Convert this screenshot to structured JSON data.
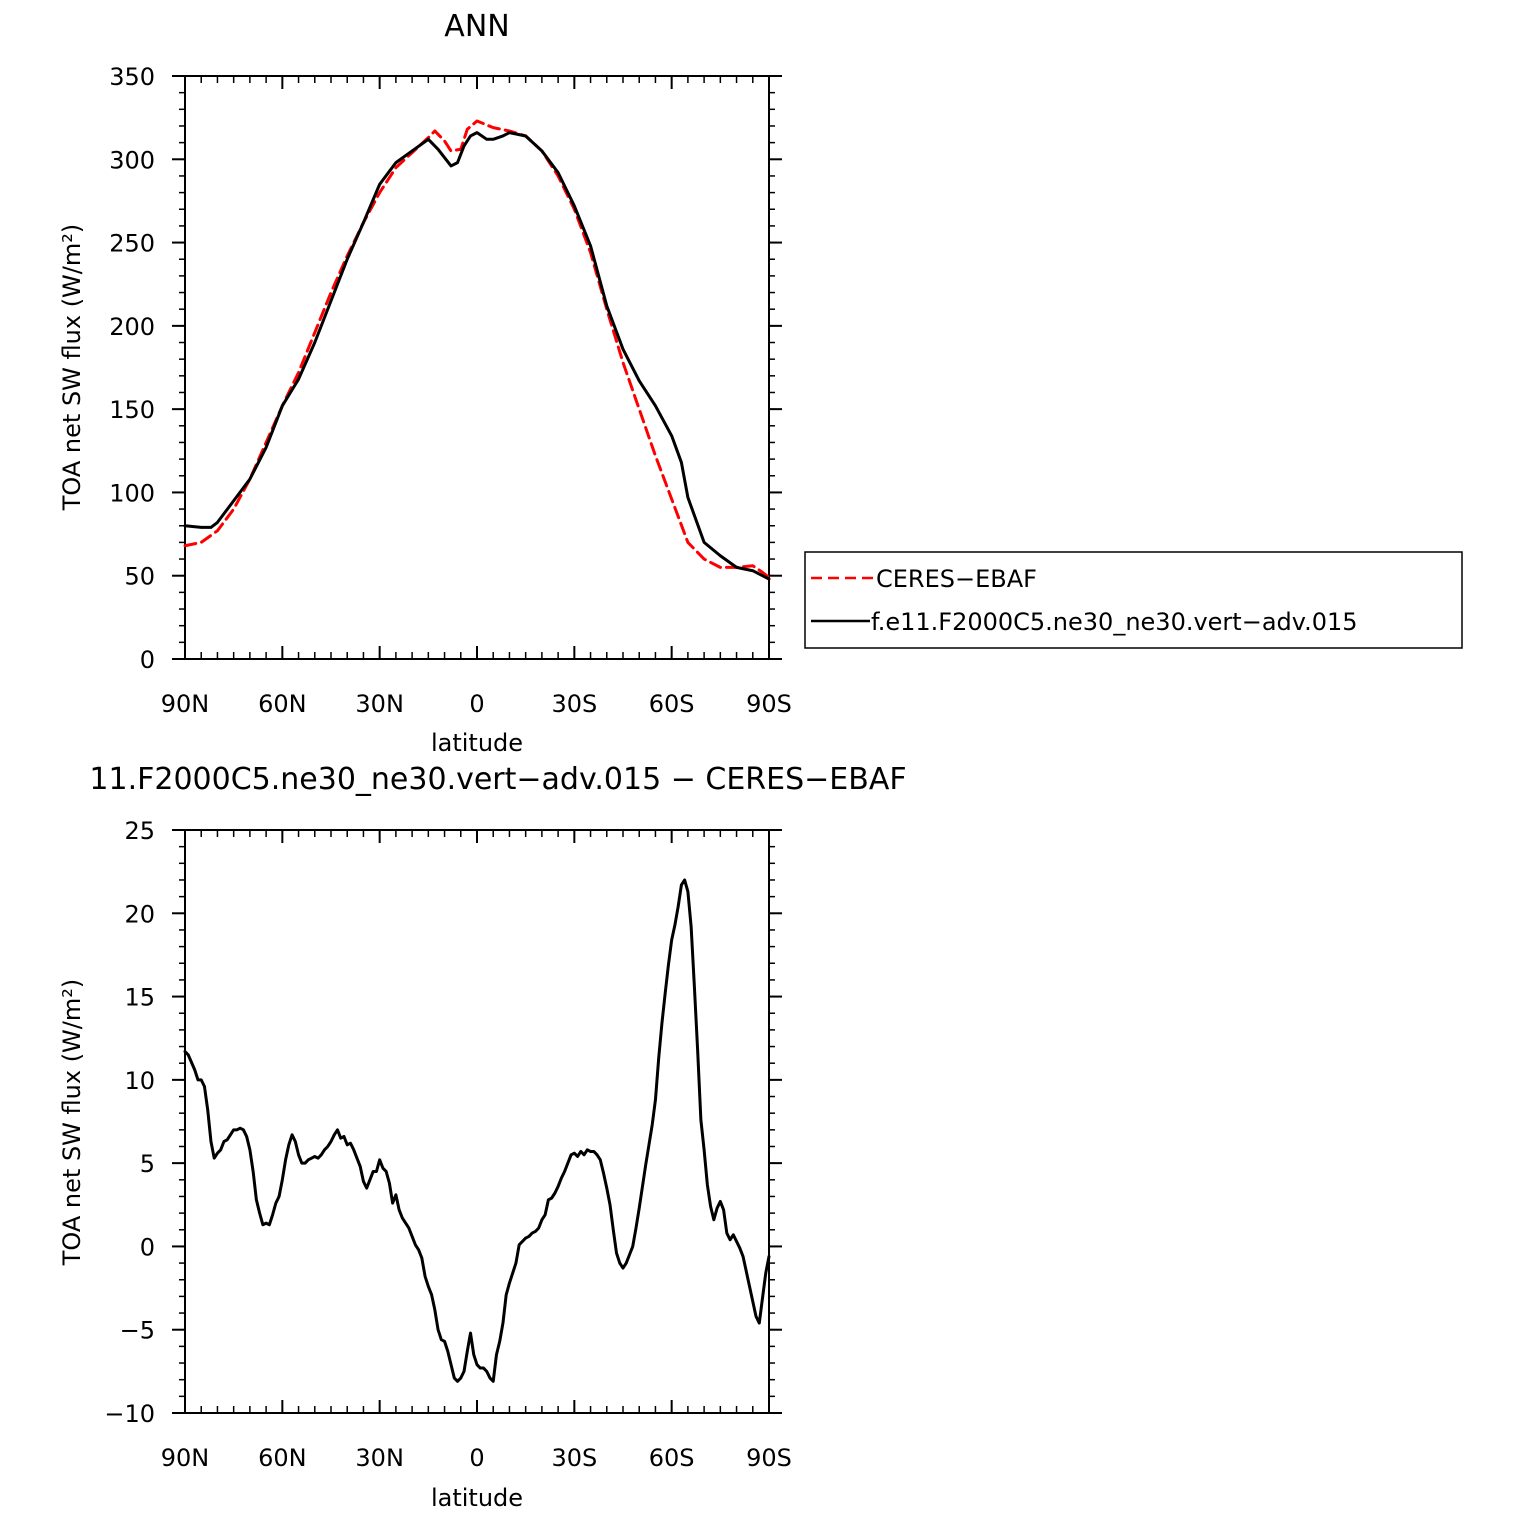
{
  "chart_data": [
    {
      "type": "line",
      "title": "ANN",
      "xlabel": "latitude",
      "ylabel": "TOA net SW flux (W/m²)",
      "xlim": [
        90,
        -90
      ],
      "ylim": [
        0,
        350
      ],
      "x_ticks": [
        90,
        60,
        30,
        0,
        -30,
        -60,
        -90
      ],
      "x_tick_labels": [
        "90N",
        "60N",
        "30N",
        "0",
        "30S",
        "60S",
        "90S"
      ],
      "y_ticks": [
        0,
        50,
        100,
        150,
        200,
        250,
        300,
        350
      ],
      "y_tick_labels": [
        "0",
        "50",
        "100",
        "150",
        "200",
        "250",
        "300",
        "350"
      ],
      "grid": false,
      "legend": {
        "placement": "outside-right",
        "entries": [
          "CERES−EBAF",
          "f.e11.F2000C5.ne30_ne30.vert−adv.015"
        ]
      },
      "series": [
        {
          "name": "CERES−EBAF",
          "color": "#ff0000",
          "dash": "dashed",
          "x": [
            90,
            85,
            80,
            75,
            70,
            65,
            60,
            55,
            50,
            45,
            40,
            35,
            30,
            25,
            20,
            15,
            13,
            10,
            8,
            5,
            3,
            0,
            -5,
            -10,
            -15,
            -20,
            -25,
            -30,
            -35,
            -40,
            -45,
            -50,
            -55,
            -60,
            -65,
            -70,
            -75,
            -80,
            -85,
            -88,
            -90
          ],
          "y": [
            68,
            70,
            77,
            90,
            108,
            130,
            152,
            172,
            196,
            220,
            242,
            262,
            280,
            295,
            304,
            313,
            317,
            311,
            305,
            306,
            318,
            323,
            319,
            317,
            314,
            305,
            290,
            270,
            244,
            210,
            178,
            150,
            122,
            96,
            70,
            60,
            55,
            55,
            56,
            52,
            49
          ]
        },
        {
          "name": "f.e11.F2000C5.ne30_ne30.vert−adv.015",
          "color": "#000000",
          "dash": "solid",
          "x": [
            90,
            85,
            82,
            80,
            75,
            70,
            65,
            60,
            55,
            50,
            45,
            40,
            35,
            30,
            25,
            20,
            15,
            12,
            8,
            6,
            4,
            2,
            0,
            -3,
            -5,
            -8,
            -10,
            -15,
            -20,
            -25,
            -30,
            -35,
            -40,
            -45,
            -50,
            -55,
            -60,
            -63,
            -65,
            -70,
            -75,
            -80,
            -85,
            -90
          ],
          "y": [
            80,
            79,
            79,
            82,
            95,
            108,
            127,
            152,
            168,
            190,
            215,
            240,
            262,
            285,
            298,
            305,
            312,
            306,
            296,
            298,
            308,
            314,
            316,
            312,
            312,
            314,
            316,
            314,
            305,
            292,
            272,
            248,
            212,
            186,
            167,
            152,
            134,
            118,
            97,
            70,
            62,
            55,
            53,
            48
          ]
        }
      ]
    },
    {
      "type": "line",
      "title": "11.F2000C5.ne30_ne30.vert−adv.015 − CERES−EBAF",
      "xlabel": "latitude",
      "ylabel": "TOA net SW flux (W/m²)",
      "xlim": [
        90,
        -90
      ],
      "ylim": [
        -10,
        25
      ],
      "x_ticks": [
        90,
        60,
        30,
        0,
        -30,
        -60,
        -90
      ],
      "x_tick_labels": [
        "90N",
        "60N",
        "30N",
        "0",
        "30S",
        "60S",
        "90S"
      ],
      "y_ticks": [
        -10,
        -5,
        0,
        5,
        10,
        15,
        20,
        25
      ],
      "y_tick_labels": [
        "−10",
        "−5",
        "0",
        "5",
        "10",
        "15",
        "20",
        "25"
      ],
      "grid": false,
      "series": [
        {
          "color": "#000000",
          "dash": "solid",
          "x": [
            90,
            89,
            87,
            86,
            85,
            84,
            83,
            82,
            81,
            80,
            79,
            78,
            77,
            76,
            75,
            74,
            73,
            72,
            71,
            70,
            69,
            68,
            67,
            66,
            65,
            64,
            63,
            62,
            61,
            60,
            59,
            58,
            57,
            56,
            55,
            54,
            53,
            52,
            51,
            50,
            49,
            48,
            47,
            46,
            45,
            44,
            43,
            42,
            41,
            40,
            39,
            38,
            37,
            36,
            35,
            34,
            33,
            32,
            31,
            30,
            29,
            28,
            27,
            26,
            25,
            24,
            23,
            22,
            21,
            20,
            19,
            18,
            17,
            16,
            15,
            14,
            13,
            12,
            11,
            10,
            9,
            8,
            7,
            6,
            5,
            4,
            3,
            2,
            1,
            0,
            -1,
            -2,
            -3,
            -4,
            -5,
            -6,
            -7,
            -8,
            -9,
            -10,
            -11,
            -12,
            -13,
            -14,
            -15,
            -16,
            -17,
            -18,
            -19,
            -20,
            -21,
            -22,
            -23,
            -24,
            -25,
            -26,
            -27,
            -28,
            -29,
            -30,
            -31,
            -32,
            -33,
            -34,
            -35,
            -36,
            -37,
            -38,
            -39,
            -40,
            -41,
            -42,
            -43,
            -44,
            -45,
            -46,
            -47,
            -48,
            -49,
            -50,
            -51,
            -52,
            -53,
            -54,
            -55,
            -56,
            -57,
            -58,
            -59,
            -60,
            -61,
            -62,
            -63,
            -64,
            -65,
            -66,
            -67,
            -68,
            -69,
            -70,
            -71,
            -72,
            -73,
            -74,
            -75,
            -76,
            -77,
            -78,
            -79,
            -80,
            -81,
            -82,
            -83,
            -84,
            -85,
            -86,
            -87,
            -88,
            -89,
            -90
          ],
          "y": [
            11.7,
            11.5,
            10.6,
            10.0,
            10.0,
            9.6,
            8.2,
            6.3,
            5.3,
            5.6,
            5.8,
            6.3,
            6.4,
            6.7,
            7.0,
            7.0,
            7.1,
            7.0,
            6.6,
            5.8,
            4.5,
            2.8,
            2.0,
            1.3,
            1.4,
            1.3,
            1.9,
            2.6,
            3.0,
            4.0,
            5.2,
            6.1,
            6.7,
            6.3,
            5.5,
            5.0,
            5.0,
            5.2,
            5.3,
            5.4,
            5.3,
            5.5,
            5.8,
            6.0,
            6.3,
            6.7,
            7.0,
            6.5,
            6.6,
            6.1,
            6.2,
            5.8,
            5.3,
            4.8,
            3.9,
            3.5,
            4.0,
            4.5,
            4.5,
            5.2,
            4.7,
            4.5,
            3.8,
            2.6,
            3.1,
            2.2,
            1.7,
            1.4,
            1.1,
            0.6,
            0.1,
            -0.2,
            -0.7,
            -1.8,
            -2.4,
            -2.9,
            -3.8,
            -5.0,
            -5.6,
            -5.7,
            -6.3,
            -7.1,
            -7.9,
            -8.1,
            -7.9,
            -7.5,
            -6.3,
            -5.2,
            -6.5,
            -7.1,
            -7.3,
            -7.3,
            -7.5,
            -7.9,
            -8.1,
            -6.5,
            -5.7,
            -4.6,
            -2.9,
            -2.2,
            -1.6,
            -1.0,
            0.1,
            0.3,
            0.5,
            0.6,
            0.8,
            0.9,
            1.1,
            1.6,
            1.9,
            2.8,
            2.9,
            3.2,
            3.6,
            4.1,
            4.5,
            5.0,
            5.5,
            5.6,
            5.4,
            5.7,
            5.5,
            5.8,
            5.7,
            5.7,
            5.5,
            5.2,
            4.4,
            3.5,
            2.5,
            1.0,
            -0.4,
            -1.0,
            -1.3,
            -1.0,
            -0.5,
            0.0,
            1.1,
            2.3,
            3.6,
            4.9,
            6.1,
            7.3,
            8.8,
            11.3,
            13.4,
            15.2,
            16.9,
            18.4,
            19.3,
            20.4,
            21.7,
            22.0,
            21.3,
            19.2,
            15.6,
            11.8,
            7.6,
            5.8,
            3.7,
            2.4,
            1.6,
            2.3,
            2.7,
            2.2,
            0.8,
            0.4,
            0.7,
            0.3,
            -0.1,
            -0.6,
            -1.5,
            -2.4,
            -3.3,
            -4.2,
            -4.6,
            -3.1,
            -1.6,
            -0.6
          ]
        }
      ]
    }
  ]
}
